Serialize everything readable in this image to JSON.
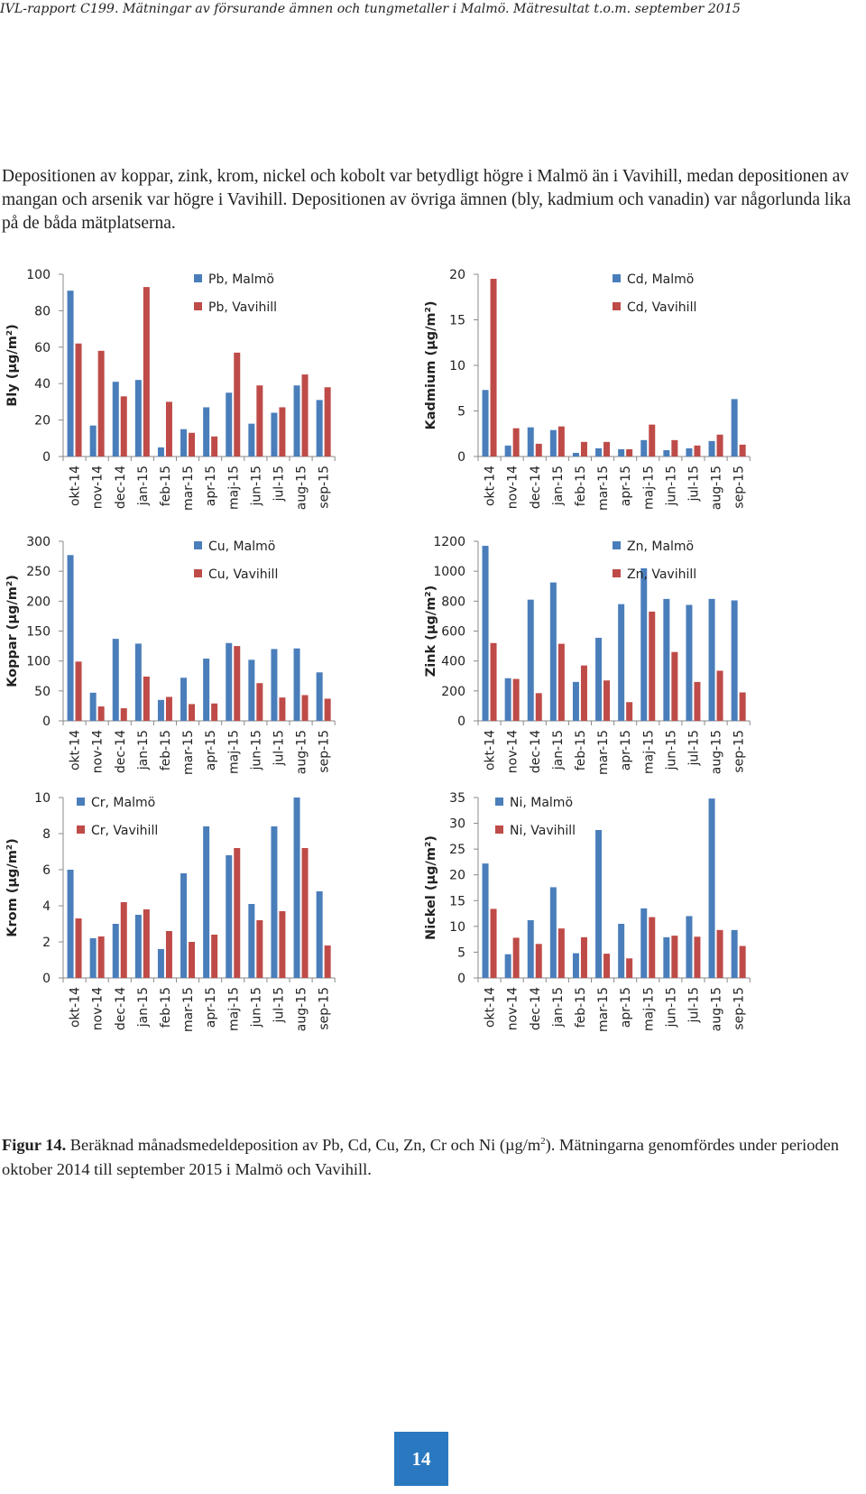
{
  "header": "IVL-rapport C199. Mätningar av försurande ämnen och tungmetaller i Malmö. Mätresultat t.o.m. september 2015",
  "intro": "Depositionen av koppar, zink, krom, nickel och kobolt var betydligt högre i Malmö än i Vavihill, medan depositionen av mangan och arsenik var högre i Vavihill. Depositionen av övriga ämnen (bly, kadmium och vanadin) var någorlunda lika på de båda mätplatserna.",
  "colors": {
    "malmo": "#4a7ebb",
    "vavihill": "#be4b48",
    "axis": "#888888",
    "text": "#222222"
  },
  "chart_data": [
    {
      "type": "bar",
      "ylabel": "Bly (µg/m²)",
      "categories": [
        "okt-14",
        "nov-14",
        "dec-14",
        "jan-15",
        "feb-15",
        "mar-15",
        "apr-15",
        "maj-15",
        "jun-15",
        "jul-15",
        "aug-15",
        "sep-15"
      ],
      "ylim": [
        0,
        100
      ],
      "yticks": [
        0,
        20,
        40,
        60,
        80,
        100
      ],
      "legend_position": "top-right",
      "series": [
        {
          "name": "Pb, Malmö",
          "color": "#4a7ebb",
          "values": [
            91,
            17,
            41,
            42,
            5,
            15,
            27,
            35,
            18,
            24,
            39,
            31
          ]
        },
        {
          "name": "Pb, Vavihill",
          "color": "#be4b48",
          "values": [
            62,
            58,
            33,
            93,
            30,
            13,
            11,
            57,
            39,
            27,
            45,
            38
          ]
        }
      ]
    },
    {
      "type": "bar",
      "ylabel": "Kadmium (µg/m²)",
      "categories": [
        "okt-14",
        "nov-14",
        "dec-14",
        "jan-15",
        "feb-15",
        "mar-15",
        "apr-15",
        "maj-15",
        "jun-15",
        "jul-15",
        "aug-15",
        "sep-15"
      ],
      "ylim": [
        0,
        20
      ],
      "yticks": [
        0,
        5,
        10,
        15,
        20
      ],
      "legend_position": "top-right",
      "series": [
        {
          "name": "Cd, Malmö",
          "color": "#4a7ebb",
          "values": [
            7.3,
            1.2,
            3.2,
            2.9,
            0.4,
            0.9,
            0.8,
            1.8,
            0.7,
            0.9,
            1.7,
            6.3
          ]
        },
        {
          "name": "Cd, Vavihill",
          "color": "#be4b48",
          "values": [
            19.5,
            3.1,
            1.4,
            3.3,
            1.6,
            1.6,
            0.8,
            3.5,
            1.8,
            1.2,
            2.4,
            1.3
          ]
        }
      ]
    },
    {
      "type": "bar",
      "ylabel": "Koppar (µg/m²)",
      "categories": [
        "okt-14",
        "nov-14",
        "dec-14",
        "jan-15",
        "feb-15",
        "mar-15",
        "apr-15",
        "maj-15",
        "jun-15",
        "jul-15",
        "aug-15",
        "sep-15"
      ],
      "ylim": [
        0,
        300
      ],
      "yticks": [
        0,
        50,
        100,
        150,
        200,
        250,
        300
      ],
      "legend_position": "top-right",
      "series": [
        {
          "name": "Cu, Malmö",
          "color": "#4a7ebb",
          "values": [
            277,
            47,
            137,
            129,
            35,
            72,
            104,
            130,
            102,
            120,
            121,
            81
          ]
        },
        {
          "name": "Cu, Vavihill",
          "color": "#be4b48",
          "values": [
            99,
            24,
            21,
            74,
            40,
            28,
            29,
            125,
            63,
            39,
            43,
            37
          ]
        }
      ]
    },
    {
      "type": "bar",
      "ylabel": "Zink (µg/m²)",
      "categories": [
        "okt-14",
        "nov-14",
        "dec-14",
        "jan-15",
        "feb-15",
        "mar-15",
        "apr-15",
        "maj-15",
        "jun-15",
        "jul-15",
        "aug-15",
        "sep-15"
      ],
      "ylim": [
        0,
        1200
      ],
      "yticks": [
        0,
        200,
        400,
        600,
        800,
        1000,
        1200
      ],
      "legend_position": "top-right",
      "series": [
        {
          "name": "Zn, Malmö",
          "color": "#4a7ebb",
          "values": [
            1170,
            285,
            810,
            925,
            260,
            555,
            780,
            1020,
            815,
            775,
            815,
            805
          ]
        },
        {
          "name": "Zn, Vavihill",
          "color": "#be4b48",
          "values": [
            520,
            280,
            185,
            515,
            370,
            270,
            125,
            730,
            460,
            260,
            335,
            190
          ]
        }
      ]
    },
    {
      "type": "bar",
      "ylabel": "Krom (µg/m²)",
      "categories": [
        "okt-14",
        "nov-14",
        "dec-14",
        "jan-15",
        "feb-15",
        "mar-15",
        "apr-15",
        "maj-15",
        "jun-15",
        "jul-15",
        "aug-15",
        "sep-15"
      ],
      "ylim": [
        0,
        10
      ],
      "yticks": [
        0,
        2,
        4,
        6,
        8,
        10
      ],
      "legend_position": "top-left",
      "series": [
        {
          "name": "Cr, Malmö",
          "color": "#4a7ebb",
          "values": [
            6.0,
            2.2,
            3.0,
            3.5,
            1.6,
            5.8,
            8.4,
            6.8,
            4.1,
            8.4,
            10.0,
            4.8
          ]
        },
        {
          "name": "Cr, Vavihill",
          "color": "#be4b48",
          "values": [
            3.3,
            2.3,
            4.2,
            3.8,
            2.6,
            2.0,
            2.4,
            7.2,
            3.2,
            3.7,
            7.2,
            1.8
          ]
        }
      ]
    },
    {
      "type": "bar",
      "ylabel": "Nickel (µg/m²)",
      "categories": [
        "okt-14",
        "nov-14",
        "dec-14",
        "jan-15",
        "feb-15",
        "mar-15",
        "apr-15",
        "maj-15",
        "jun-15",
        "jul-15",
        "aug-15",
        "sep-15"
      ],
      "ylim": [
        0,
        35
      ],
      "yticks": [
        0,
        5,
        10,
        15,
        20,
        25,
        30,
        35
      ],
      "legend_position": "top-left",
      "series": [
        {
          "name": "Ni, Malmö",
          "color": "#4a7ebb",
          "values": [
            22.2,
            4.6,
            11.2,
            17.6,
            4.8,
            28.7,
            10.5,
            13.5,
            7.9,
            12.0,
            34.8,
            9.3
          ]
        },
        {
          "name": "Ni, Vavihill",
          "color": "#be4b48",
          "values": [
            13.4,
            7.8,
            6.6,
            9.6,
            7.9,
            4.7,
            3.8,
            11.8,
            8.2,
            8.0,
            9.3,
            6.2
          ]
        }
      ]
    }
  ],
  "caption": {
    "label": "Figur 14.",
    "text_before_sup": " Beräknad månadsmedeldeposition av Pb, Cd, Cu, Zn, Cr och Ni (µg/m",
    "sup": "2",
    "text_after_sup": "). Mätningarna genomfördes under perioden oktober 2014 till september 2015 i Malmö och Vavihill."
  },
  "page_number": "14"
}
